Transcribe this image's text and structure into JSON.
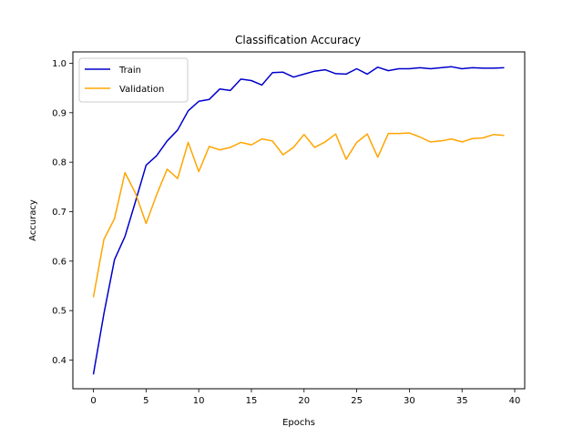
{
  "chart_data": {
    "type": "line",
    "title": "Classification Accuracy",
    "xlabel": "Epochs",
    "ylabel": "Accuracy",
    "xlim": [
      -1.95,
      40.95
    ],
    "ylim": [
      0.342,
      1.023
    ],
    "xticks": [
      0,
      5,
      10,
      15,
      20,
      25,
      30,
      35,
      40
    ],
    "yticks": [
      0.4,
      0.5,
      0.6,
      0.7,
      0.8,
      0.9,
      1.0
    ],
    "ytick_labels": [
      "0.4",
      "0.5",
      "0.6",
      "0.7",
      "0.8",
      "0.9",
      "1.0"
    ],
    "grid": false,
    "legend_position": "top-left",
    "x": [
      0,
      1,
      2,
      3,
      4,
      5,
      6,
      7,
      8,
      9,
      10,
      11,
      12,
      13,
      14,
      15,
      16,
      17,
      18,
      19,
      20,
      21,
      22,
      23,
      24,
      25,
      26,
      27,
      28,
      29,
      30,
      31,
      32,
      33,
      34,
      35,
      36,
      37,
      38,
      39
    ],
    "series": [
      {
        "name": "Train",
        "color": "#0000cc",
        "values": [
          0.371,
          0.494,
          0.603,
          0.65,
          0.721,
          0.794,
          0.813,
          0.843,
          0.865,
          0.904,
          0.923,
          0.927,
          0.948,
          0.945,
          0.968,
          0.965,
          0.956,
          0.981,
          0.982,
          0.972,
          0.978,
          0.984,
          0.987,
          0.979,
          0.978,
          0.989,
          0.978,
          0.992,
          0.985,
          0.989,
          0.989,
          0.991,
          0.989,
          0.991,
          0.993,
          0.989,
          0.991,
          0.99,
          0.99,
          0.991
        ]
      },
      {
        "name": "Validation",
        "color": "#ffa500",
        "values": [
          0.527,
          0.644,
          0.686,
          0.779,
          0.737,
          0.676,
          0.734,
          0.786,
          0.767,
          0.84,
          0.781,
          0.832,
          0.825,
          0.83,
          0.84,
          0.835,
          0.847,
          0.843,
          0.815,
          0.83,
          0.856,
          0.83,
          0.841,
          0.857,
          0.806,
          0.84,
          0.857,
          0.81,
          0.858,
          0.858,
          0.859,
          0.851,
          0.841,
          0.843,
          0.847,
          0.841,
          0.848,
          0.849,
          0.856,
          0.854
        ]
      }
    ]
  }
}
